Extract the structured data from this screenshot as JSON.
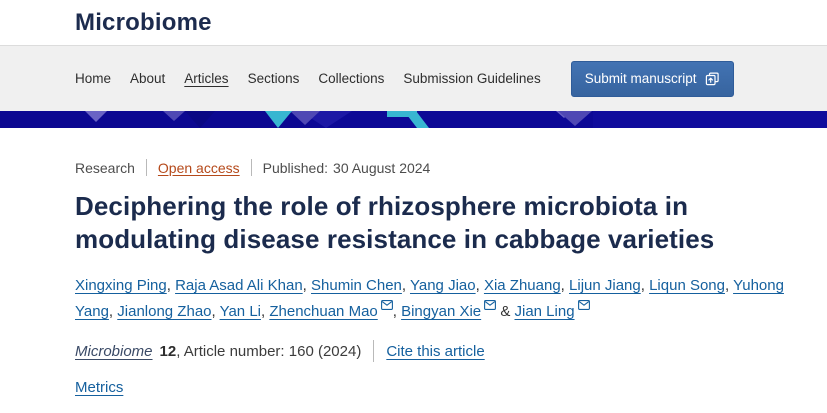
{
  "colors": {
    "banner_navy": "#0d0996",
    "banner_purple": "#4f48b4",
    "banner_light_purple": "#6a63c5",
    "banner_cyan": "#38b6d1",
    "button_blue": "#3b6cae",
    "link_blue": "#15609e",
    "open_access_orange": "#b5491a",
    "heading_navy": "#1b2b4d"
  },
  "header": {
    "logo": "Microbiome"
  },
  "nav": {
    "items": [
      {
        "label": "Home",
        "current": false
      },
      {
        "label": "About",
        "current": false
      },
      {
        "label": "Articles",
        "current": true
      },
      {
        "label": "Sections",
        "current": false
      },
      {
        "label": "Collections",
        "current": false
      },
      {
        "label": "Submission Guidelines",
        "current": false
      }
    ],
    "submit_button": {
      "label": "Submit manuscript",
      "icon": "submit-manuscript-icon"
    }
  },
  "article": {
    "type": "Research",
    "access_label": "Open access",
    "published_label": "Published:",
    "published_date": "30 August 2024",
    "title_line1": "Deciphering the role of rhizosphere microbiota in",
    "title_line2": "modulating disease resistance in cabbage varieties"
  },
  "authors": {
    "separator": ", ",
    "last_separator": " & ",
    "email_icon": "email-icon",
    "list": [
      {
        "name": "Xingxing Ping",
        "email": false
      },
      {
        "name": "Raja Asad Ali Khan",
        "email": false
      },
      {
        "name": "Shumin Chen",
        "email": false
      },
      {
        "name": "Yang Jiao",
        "email": false
      },
      {
        "name": "Xia Zhuang",
        "email": false
      },
      {
        "name": "Lijun Jiang",
        "email": false
      },
      {
        "name": "Liqun Song",
        "email": false
      },
      {
        "name": "Yuhong Yang",
        "email": false
      },
      {
        "name": "Jianlong Zhao",
        "email": false
      },
      {
        "name": "Yan Li",
        "email": false
      },
      {
        "name": "Zhenchuan Mao",
        "email": true
      },
      {
        "name": "Bingyan Xie",
        "email": true
      },
      {
        "name": "Jian Ling",
        "email": true
      }
    ]
  },
  "citation": {
    "journal": "Microbiome",
    "volume": "12",
    "article_text": ", Article number: 160 (2024)",
    "cite_label": "Cite this article"
  },
  "metrics_label": "Metrics"
}
